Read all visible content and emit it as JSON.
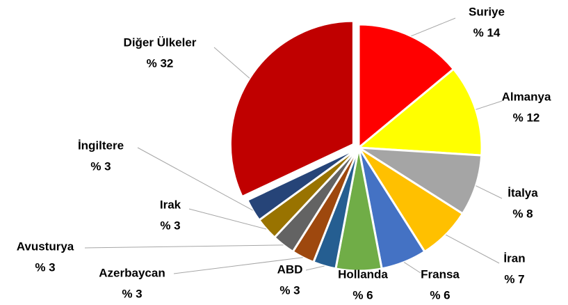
{
  "chart_data": {
    "type": "pie",
    "categories": [
      "Suriye",
      "Almanya",
      "İtalya",
      "İran",
      "Fransa",
      "Hollanda",
      "ABD",
      "Azerbaycan",
      "Avusturya",
      "Irak",
      "İngiltere",
      "Diğer Ülkeler"
    ],
    "values": [
      14,
      12,
      8,
      7,
      6,
      6,
      3,
      3,
      3,
      3,
      3,
      32
    ],
    "value_labels": [
      "% 14",
      "% 12",
      "% 8",
      "% 7",
      "% 6",
      "% 6",
      "% 3",
      "% 3",
      "% 3",
      "% 3",
      "% 3",
      "% 32"
    ],
    "colors": [
      "#ff0000",
      "#ffff00",
      "#a5a5a5",
      "#ffc000",
      "#4472c4",
      "#70ad47",
      "#255e91",
      "#9e480e",
      "#636363",
      "#997300",
      "#264478",
      "#c00000"
    ]
  }
}
